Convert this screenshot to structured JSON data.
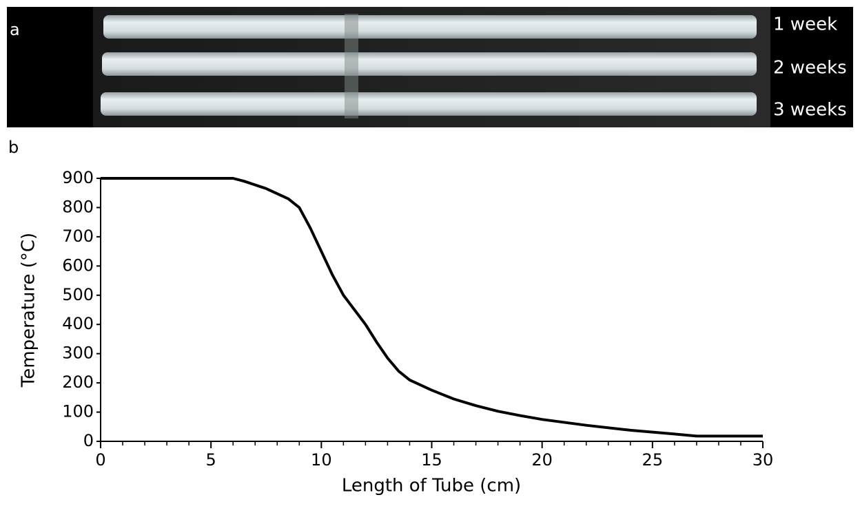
{
  "panel_a": {
    "label": "a",
    "tube_labels": [
      "1 week",
      "2 weeks",
      "3 weeks"
    ]
  },
  "panel_b": {
    "label": "b"
  },
  "chart_data": {
    "type": "line",
    "x_label": "Length of Tube (cm)",
    "y_label": "Temperature (°C)",
    "x": [
      0,
      6,
      6.5,
      7.5,
      8.5,
      9,
      9.5,
      10,
      10.5,
      11,
      11.5,
      12,
      12.5,
      13,
      13.5,
      14,
      15,
      16,
      17,
      18,
      19,
      20,
      22,
      24,
      26,
      27,
      30
    ],
    "values": [
      900,
      900,
      890,
      865,
      830,
      800,
      730,
      650,
      570,
      500,
      450,
      400,
      340,
      285,
      240,
      210,
      175,
      145,
      122,
      103,
      88,
      75,
      55,
      38,
      25,
      18,
      18
    ],
    "color": "#000000",
    "xlim": [
      0,
      30
    ],
    "xticks": [
      0,
      5,
      10,
      15,
      20,
      25,
      30
    ],
    "x_minor_ticks": [
      1,
      2,
      3,
      4,
      6,
      7,
      8,
      9,
      11,
      12,
      13,
      14,
      16,
      17,
      18,
      19,
      21,
      22,
      23,
      24,
      26,
      27,
      28,
      29
    ],
    "ylim": [
      0,
      900
    ],
    "yticks": [
      0,
      100,
      200,
      300,
      400,
      500,
      600,
      700,
      800,
      900
    ],
    "grid": false
  }
}
